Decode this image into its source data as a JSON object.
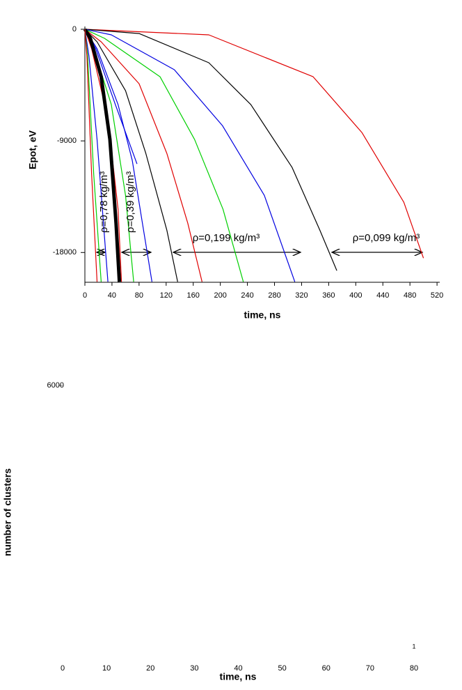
{
  "chart_data": [
    {
      "type": "line",
      "x_label": "time, ns",
      "y_label": "Epot, eV",
      "xlim": [
        0,
        524
      ],
      "ylim": [
        -20400,
        0
      ],
      "xticks": [
        0,
        40,
        80,
        120,
        160,
        200,
        240,
        280,
        320,
        360,
        400,
        440,
        480,
        520
      ],
      "yticks": [
        0,
        -9000,
        -18000
      ],
      "series": [
        {
          "color": "#e00000",
          "x": [
            0,
            183,
            337,
            409,
            471,
            500
          ],
          "values": [
            0,
            -450,
            -3825,
            -8325,
            -13950,
            -18450
          ]
        },
        {
          "color": "#000000",
          "x": [
            0,
            80,
            183,
            245,
            306,
            347,
            372
          ],
          "values": [
            0,
            -340,
            -2700,
            -6075,
            -11140,
            -16200,
            -19460
          ]
        },
        {
          "color": "#0000e0",
          "x": [
            0,
            39,
            132,
            203,
            265,
            310
          ],
          "values": [
            0,
            -450,
            -3260,
            -7760,
            -13390,
            -20360
          ]
        },
        {
          "color": "#00d000",
          "x": [
            0,
            29,
            111,
            162,
            204,
            234
          ],
          "values": [
            0,
            -730,
            -3825,
            -8890,
            -14510,
            -20360
          ]
        },
        {
          "color": "#e00000",
          "x": [
            0,
            24,
            80,
            121,
            152,
            173
          ],
          "values": [
            0,
            -1010,
            -4390,
            -10010,
            -15640,
            -20360
          ]
        },
        {
          "color": "#000000",
          "x": [
            0,
            18,
            60,
            90,
            121,
            137
          ],
          "values": [
            0,
            -1010,
            -4950,
            -10010,
            -16200,
            -20360
          ]
        },
        {
          "color": "#0000e0",
          "x": [
            0,
            18,
            49,
            70,
            85,
            99
          ],
          "values": [
            0,
            -1575,
            -6075,
            -10575,
            -15640,
            -20360
          ]
        },
        {
          "color": "#0000e0",
          "x": [
            0,
            16,
            45,
            77
          ],
          "values": [
            0,
            -1575,
            -6075,
            -10860
          ]
        },
        {
          "color": "#00d000",
          "x": [
            0,
            13,
            39,
            60,
            72
          ],
          "values": [
            0,
            -1575,
            -6075,
            -13390,
            -20360
          ]
        },
        {
          "color": "#e00000",
          "x": [
            0,
            10,
            34,
            49,
            54
          ],
          "values": [
            0,
            -1575,
            -7200,
            -14510,
            -20360
          ]
        },
        {
          "color": "#000000",
          "line_width": 5,
          "x": [
            0,
            8,
            24,
            37,
            46,
            51
          ],
          "values": [
            0,
            -730,
            -3825,
            -8890,
            -15640,
            -20360
          ]
        },
        {
          "color": "#0000e0",
          "x": [
            0,
            6,
            18,
            34
          ],
          "values": [
            0,
            -2140,
            -8890,
            -20360
          ]
        },
        {
          "color": "#00d000",
          "x": [
            0,
            4,
            13,
            24
          ],
          "values": [
            0,
            -2140,
            -11700,
            -20360
          ]
        },
        {
          "color": "#e00000",
          "x": [
            0,
            3,
            10,
            18
          ],
          "values": [
            0,
            -2140,
            -11700,
            -20360
          ]
        }
      ],
      "annotations": [
        "ρ=0,78 kg/m³",
        "ρ=0,39 kg/m³",
        "ρ=0,199 kg/m³",
        "ρ=0,099 kg/m³"
      ]
    },
    {
      "type": "line",
      "x_label": "time, ns",
      "y_label": "number of clusters",
      "xlim": [
        0,
        80
      ],
      "ylim": [
        0,
        6000
      ],
      "xticks": [
        0,
        10,
        20,
        30,
        40,
        50,
        60,
        70,
        80
      ],
      "yticks": [
        6000
      ],
      "series": [],
      "annotations": [
        "1"
      ]
    }
  ]
}
